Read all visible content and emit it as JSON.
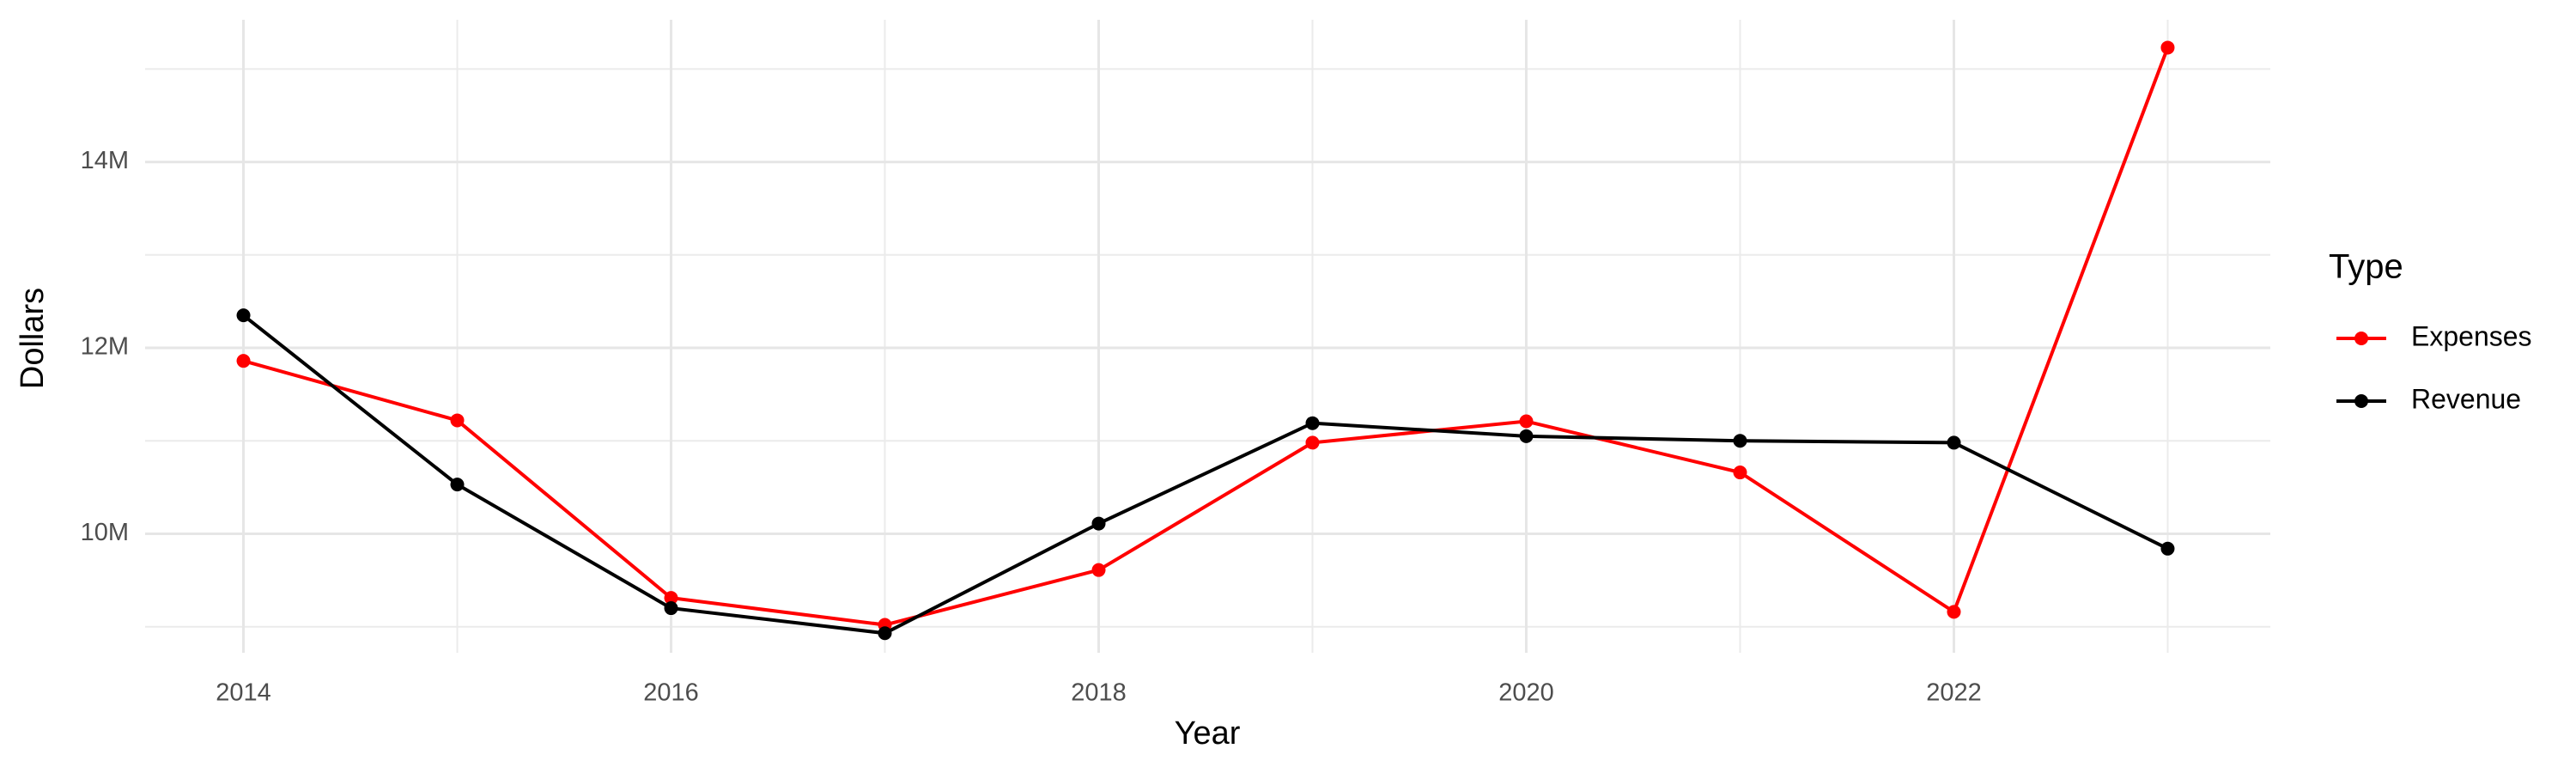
{
  "chart_data": {
    "type": "line",
    "x_label": "Year",
    "y_label": "Dollars",
    "legend_title": "Type",
    "legend": "right",
    "grid": true,
    "x": [
      2014,
      2015,
      2016,
      2017,
      2018,
      2019,
      2020,
      2021,
      2022,
      2023
    ],
    "series": [
      {
        "name": "Expenses",
        "color": "#ff0000",
        "values": [
          11860000,
          11220000,
          9310000,
          9020000,
          9610000,
          10980000,
          11210000,
          10660000,
          9160000,
          15230000
        ]
      },
      {
        "name": "Revenue",
        "color": "#000000",
        "values": [
          12350000,
          10530000,
          9200000,
          8930000,
          10110000,
          11190000,
          11050000,
          11000000,
          10980000,
          9840000
        ]
      }
    ],
    "xlim": [
      2013.54,
      2023.48
    ],
    "xticks": [
      2014,
      2016,
      2018,
      2020,
      2022
    ],
    "ylim": [
      8720000,
      15530000
    ],
    "yticks": [
      {
        "value": 10000000,
        "label": "10M"
      },
      {
        "value": 12000000,
        "label": "12M"
      },
      {
        "value": 14000000,
        "label": "14M"
      }
    ]
  }
}
